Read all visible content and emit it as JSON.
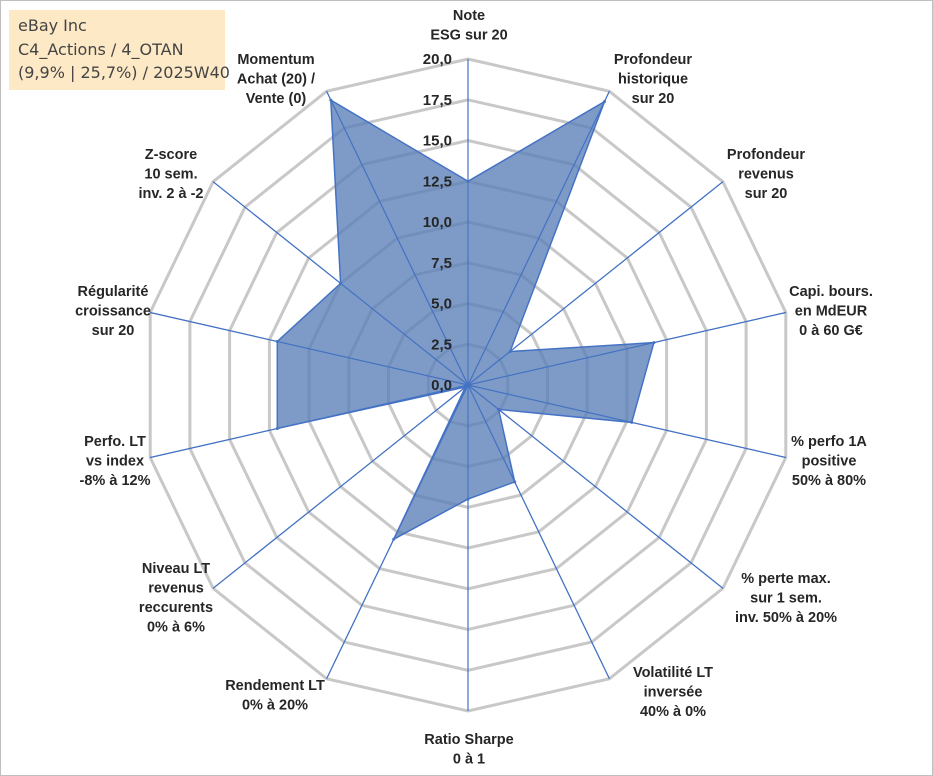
{
  "info": {
    "line1": "eBay Inc",
    "line2": "C4_Actions / 4_OTAN",
    "line3": "(9,9% | 25,7%) / 2025W40"
  },
  "chart_data": {
    "type": "radar",
    "title": "",
    "rlim": [
      0,
      20
    ],
    "ticks": [
      "0,0",
      "2,5",
      "5,0",
      "7,5",
      "10,0",
      "12,5",
      "15,0",
      "17,5",
      "20,0"
    ],
    "tick_values": [
      0,
      2.5,
      5,
      7.5,
      10,
      12.5,
      15,
      17.5,
      20
    ],
    "grid": true,
    "fill_color": "#5a7fb8",
    "line_color": "#4472c4",
    "grid_color": "#c8c8c8",
    "axes": [
      {
        "label": [
          "Note",
          "ESG sur 20"
        ],
        "value": 12.5
      },
      {
        "label": [
          "Profondeur",
          "historique",
          "sur 20"
        ],
        "value": 19.3
      },
      {
        "label": [
          "Profondeur",
          "revenus",
          "sur 20"
        ],
        "value": 3.3
      },
      {
        "label": [
          "Capi. bours.",
          "en MdEUR",
          "0 à 60 G€"
        ],
        "value": 11.7
      },
      {
        "label": [
          "% perfo 1A",
          "positive",
          "50% à 80%"
        ],
        "value": 10.3
      },
      {
        "label": [
          "% perte max.",
          "sur 1 sem.",
          "inv. 50% à 20%"
        ],
        "value": 2.4
      },
      {
        "label": [
          "Volatilité LT",
          "inversée",
          "40% à 0%"
        ],
        "value": 6.6
      },
      {
        "label": [
          "Ratio Sharpe",
          "0 à 1"
        ],
        "value": 7.0
      },
      {
        "label": [
          "Rendement LT",
          "0% à 20%"
        ],
        "value": 10.5
      },
      {
        "label": [
          "Niveau LT",
          "revenus",
          "reccurents",
          "0% à 6%"
        ],
        "value": 0.2
      },
      {
        "label": [
          "Perfo. LT",
          "vs index",
          "-8% à 12%"
        ],
        "value": 12.0
      },
      {
        "label": [
          "Régularité",
          "croissance",
          "sur 20"
        ],
        "value": 12.0
      },
      {
        "label": [
          "Z-score",
          "10 sem.",
          "inv. 2 à -2"
        ],
        "value": 10.0
      },
      {
        "label": [
          "Momentum",
          "Achat (20) /",
          "Vente (0)"
        ],
        "value": 19.4
      }
    ]
  }
}
